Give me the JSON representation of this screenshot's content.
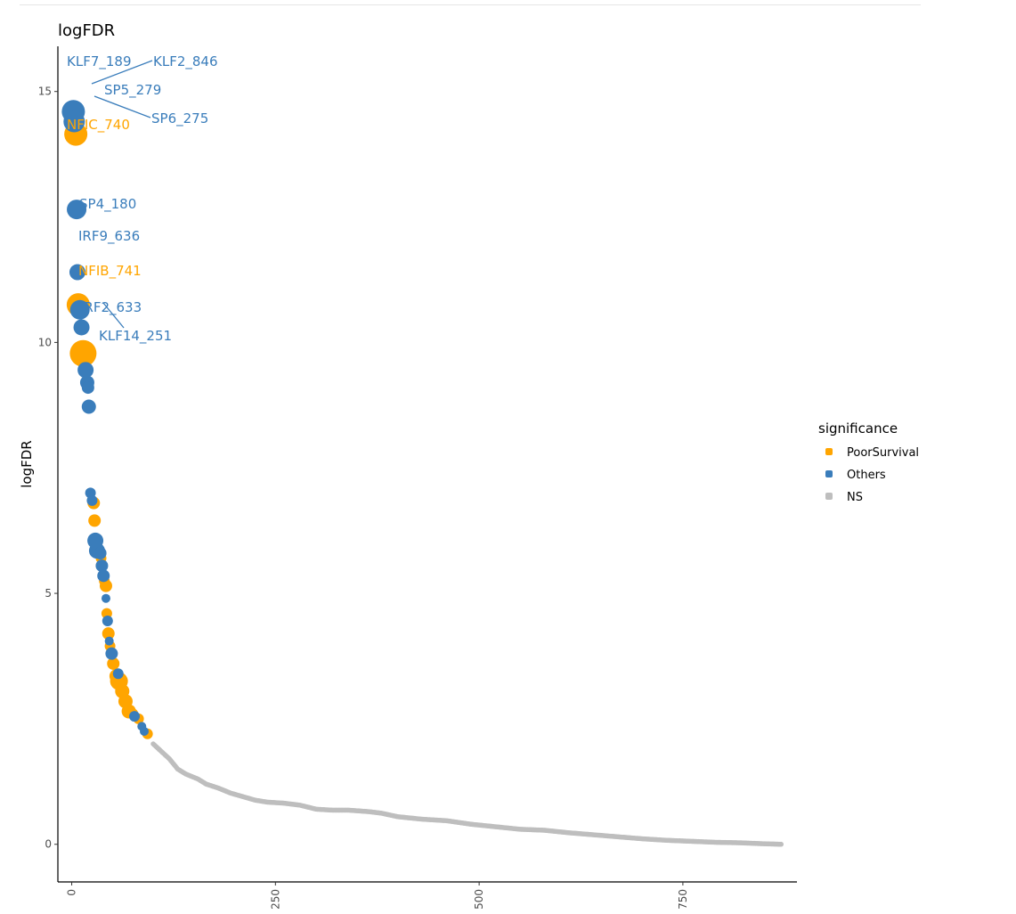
{
  "chart_data": {
    "type": "scatter",
    "title": "logFDR",
    "xlabel": "",
    "ylabel": "logFDR",
    "xlim": [
      -17,
      890
    ],
    "ylim": [
      -0.75,
      15.9
    ],
    "x_ticks": [
      0,
      250,
      500,
      750
    ],
    "y_ticks": [
      0,
      5,
      10,
      15
    ],
    "grid": false,
    "legend": {
      "title": "significance",
      "position": "right",
      "entries": [
        "PoorSurvival",
        "Others",
        "NS"
      ]
    },
    "colors": {
      "PoorSurvival": "#FFA500",
      "Others": "#3A7DBB",
      "NS": "#BEBEBE"
    },
    "series": [
      {
        "name": "PoorSurvival",
        "points": [
          {
            "x": 5,
            "y": 14.15,
            "size": 13
          },
          {
            "x": 8,
            "y": 10.75,
            "size": 13
          },
          {
            "x": 14,
            "y": 9.78,
            "size": 15
          },
          {
            "x": 27,
            "y": 6.8,
            "size": 7
          },
          {
            "x": 28,
            "y": 6.45,
            "size": 7
          },
          {
            "x": 36,
            "y": 5.7,
            "size": 6
          },
          {
            "x": 40,
            "y": 5.25,
            "size": 6
          },
          {
            "x": 42,
            "y": 5.15,
            "size": 7
          },
          {
            "x": 43,
            "y": 4.6,
            "size": 6
          },
          {
            "x": 45,
            "y": 4.2,
            "size": 7
          },
          {
            "x": 47,
            "y": 3.95,
            "size": 6
          },
          {
            "x": 51,
            "y": 3.6,
            "size": 7
          },
          {
            "x": 55,
            "y": 3.35,
            "size": 8
          },
          {
            "x": 58,
            "y": 3.25,
            "size": 10
          },
          {
            "x": 62,
            "y": 3.05,
            "size": 8
          },
          {
            "x": 66,
            "y": 2.85,
            "size": 8
          },
          {
            "x": 70,
            "y": 2.65,
            "size": 8
          },
          {
            "x": 75,
            "y": 2.6,
            "size": 6
          },
          {
            "x": 82,
            "y": 2.5,
            "size": 6
          },
          {
            "x": 93,
            "y": 2.2,
            "size": 6
          }
        ]
      },
      {
        "name": "Others",
        "points": [
          {
            "x": 2,
            "y": 14.6,
            "size": 13
          },
          {
            "x": 3,
            "y": 14.4,
            "size": 12
          },
          {
            "x": 6,
            "y": 12.65,
            "size": 11
          },
          {
            "x": 7,
            "y": 11.4,
            "size": 9
          },
          {
            "x": 10,
            "y": 10.65,
            "size": 11
          },
          {
            "x": 12,
            "y": 10.3,
            "size": 9
          },
          {
            "x": 17,
            "y": 9.45,
            "size": 9
          },
          {
            "x": 19,
            "y": 9.2,
            "size": 8
          },
          {
            "x": 20,
            "y": 9.1,
            "size": 7
          },
          {
            "x": 21,
            "y": 8.72,
            "size": 8
          },
          {
            "x": 23,
            "y": 7.0,
            "size": 6
          },
          {
            "x": 25,
            "y": 6.85,
            "size": 6
          },
          {
            "x": 29,
            "y": 6.05,
            "size": 9
          },
          {
            "x": 31,
            "y": 5.85,
            "size": 9
          },
          {
            "x": 35,
            "y": 5.8,
            "size": 7
          },
          {
            "x": 37,
            "y": 5.55,
            "size": 7
          },
          {
            "x": 39,
            "y": 5.35,
            "size": 7
          },
          {
            "x": 42,
            "y": 4.9,
            "size": 5
          },
          {
            "x": 44,
            "y": 4.45,
            "size": 6
          },
          {
            "x": 46,
            "y": 4.05,
            "size": 5
          },
          {
            "x": 49,
            "y": 3.8,
            "size": 7
          },
          {
            "x": 57,
            "y": 3.4,
            "size": 6
          },
          {
            "x": 77,
            "y": 2.55,
            "size": 6
          },
          {
            "x": 86,
            "y": 2.35,
            "size": 5
          },
          {
            "x": 89,
            "y": 2.25,
            "size": 5
          }
        ]
      },
      {
        "name": "NS",
        "curve": [
          [
            100,
            2.0
          ],
          [
            110,
            1.85
          ],
          [
            120,
            1.7
          ],
          [
            130,
            1.5
          ],
          [
            140,
            1.4
          ],
          [
            155,
            1.3
          ],
          [
            165,
            1.2
          ],
          [
            180,
            1.12
          ],
          [
            195,
            1.02
          ],
          [
            210,
            0.95
          ],
          [
            225,
            0.88
          ],
          [
            240,
            0.84
          ],
          [
            260,
            0.82
          ],
          [
            280,
            0.78
          ],
          [
            300,
            0.7
          ],
          [
            320,
            0.68
          ],
          [
            340,
            0.68
          ],
          [
            365,
            0.65
          ],
          [
            380,
            0.62
          ],
          [
            400,
            0.55
          ],
          [
            430,
            0.5
          ],
          [
            460,
            0.47
          ],
          [
            490,
            0.4
          ],
          [
            520,
            0.35
          ],
          [
            550,
            0.3
          ],
          [
            580,
            0.28
          ],
          [
            610,
            0.23
          ],
          [
            640,
            0.19
          ],
          [
            670,
            0.15
          ],
          [
            700,
            0.11
          ],
          [
            730,
            0.08
          ],
          [
            760,
            0.06
          ],
          [
            790,
            0.04
          ],
          [
            820,
            0.03
          ],
          [
            850,
            0.01
          ],
          [
            872,
            0.0
          ]
        ]
      }
    ],
    "annotations": [
      {
        "text": "KLF7_189",
        "series": "Others"
      },
      {
        "text": "KLF2_846",
        "series": "Others"
      },
      {
        "text": "SP5_279",
        "series": "Others"
      },
      {
        "text": "SP6_275",
        "series": "Others"
      },
      {
        "text": "NFIC_740",
        "series": "PoorSurvival"
      },
      {
        "text": "SP4_180",
        "series": "Others"
      },
      {
        "text": "IRF9_636",
        "series": "Others"
      },
      {
        "text": "NFIB_741",
        "series": "PoorSurvival"
      },
      {
        "text": "IRF2_633",
        "series": "Others"
      },
      {
        "text": "KLF14_251",
        "series": "Others"
      }
    ]
  }
}
